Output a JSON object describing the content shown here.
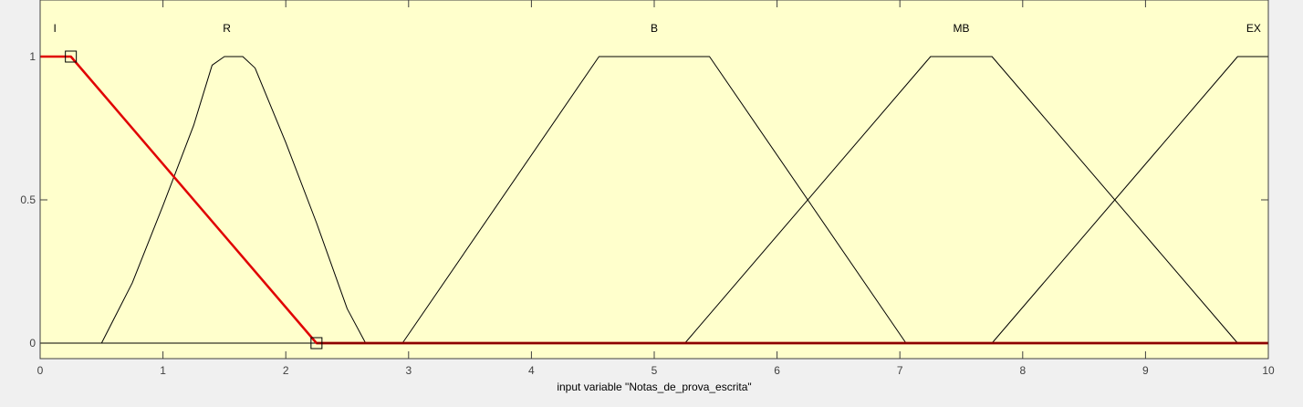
{
  "chart_data": {
    "type": "line",
    "xlabel": "input variable \"Notas_de_prova_escrita\"",
    "ylabel": "",
    "xlim": [
      0,
      10
    ],
    "ylim": [
      0,
      1.2
    ],
    "x_ticks": [
      "0",
      "1",
      "2",
      "3",
      "4",
      "5",
      "6",
      "7",
      "8",
      "9",
      "10"
    ],
    "y_ticks": [
      "0",
      "0.5",
      "1"
    ],
    "grid": false,
    "series": [
      {
        "name": "I",
        "selected": true,
        "points": [
          [
            0,
            1
          ],
          [
            0.25,
            1
          ],
          [
            2.25,
            0
          ],
          [
            10,
            0
          ]
        ],
        "handles": [
          [
            0.25,
            1
          ],
          [
            2.25,
            0
          ]
        ],
        "label_x": 0.12
      },
      {
        "name": "R",
        "selected": false,
        "points": [
          [
            0,
            0
          ],
          [
            0.5,
            0
          ],
          [
            0.75,
            0.21
          ],
          [
            1.0,
            0.48
          ],
          [
            1.25,
            0.76
          ],
          [
            1.4,
            0.97
          ],
          [
            1.5,
            1
          ],
          [
            1.65,
            1
          ],
          [
            1.75,
            0.96
          ],
          [
            2.0,
            0.7
          ],
          [
            2.25,
            0.42
          ],
          [
            2.5,
            0.12
          ],
          [
            2.65,
            0
          ],
          [
            10,
            0
          ]
        ],
        "label_x": 1.52
      },
      {
        "name": "B",
        "selected": false,
        "points": [
          [
            0,
            0
          ],
          [
            2.95,
            0
          ],
          [
            4.55,
            1
          ],
          [
            5.45,
            1
          ],
          [
            7.05,
            0
          ],
          [
            10,
            0
          ]
        ],
        "label_x": 5.0
      },
      {
        "name": "MB",
        "selected": false,
        "points": [
          [
            0,
            0
          ],
          [
            5.25,
            0
          ],
          [
            7.25,
            1
          ],
          [
            7.75,
            1
          ],
          [
            9.75,
            0
          ],
          [
            10,
            0
          ]
        ],
        "label_x": 7.5
      },
      {
        "name": "EX",
        "selected": false,
        "points": [
          [
            0,
            0
          ],
          [
            7.75,
            0
          ],
          [
            9.75,
            1
          ],
          [
            10,
            1
          ]
        ],
        "label_x": 9.88
      }
    ]
  },
  "colors": {
    "plot_background": "#ffffcc",
    "figure_background": "#f0f0f0",
    "axis_color": "#404040",
    "selected_mf": "#e00000",
    "unselected_mf": "#000000",
    "baseline": "#8b0000"
  }
}
